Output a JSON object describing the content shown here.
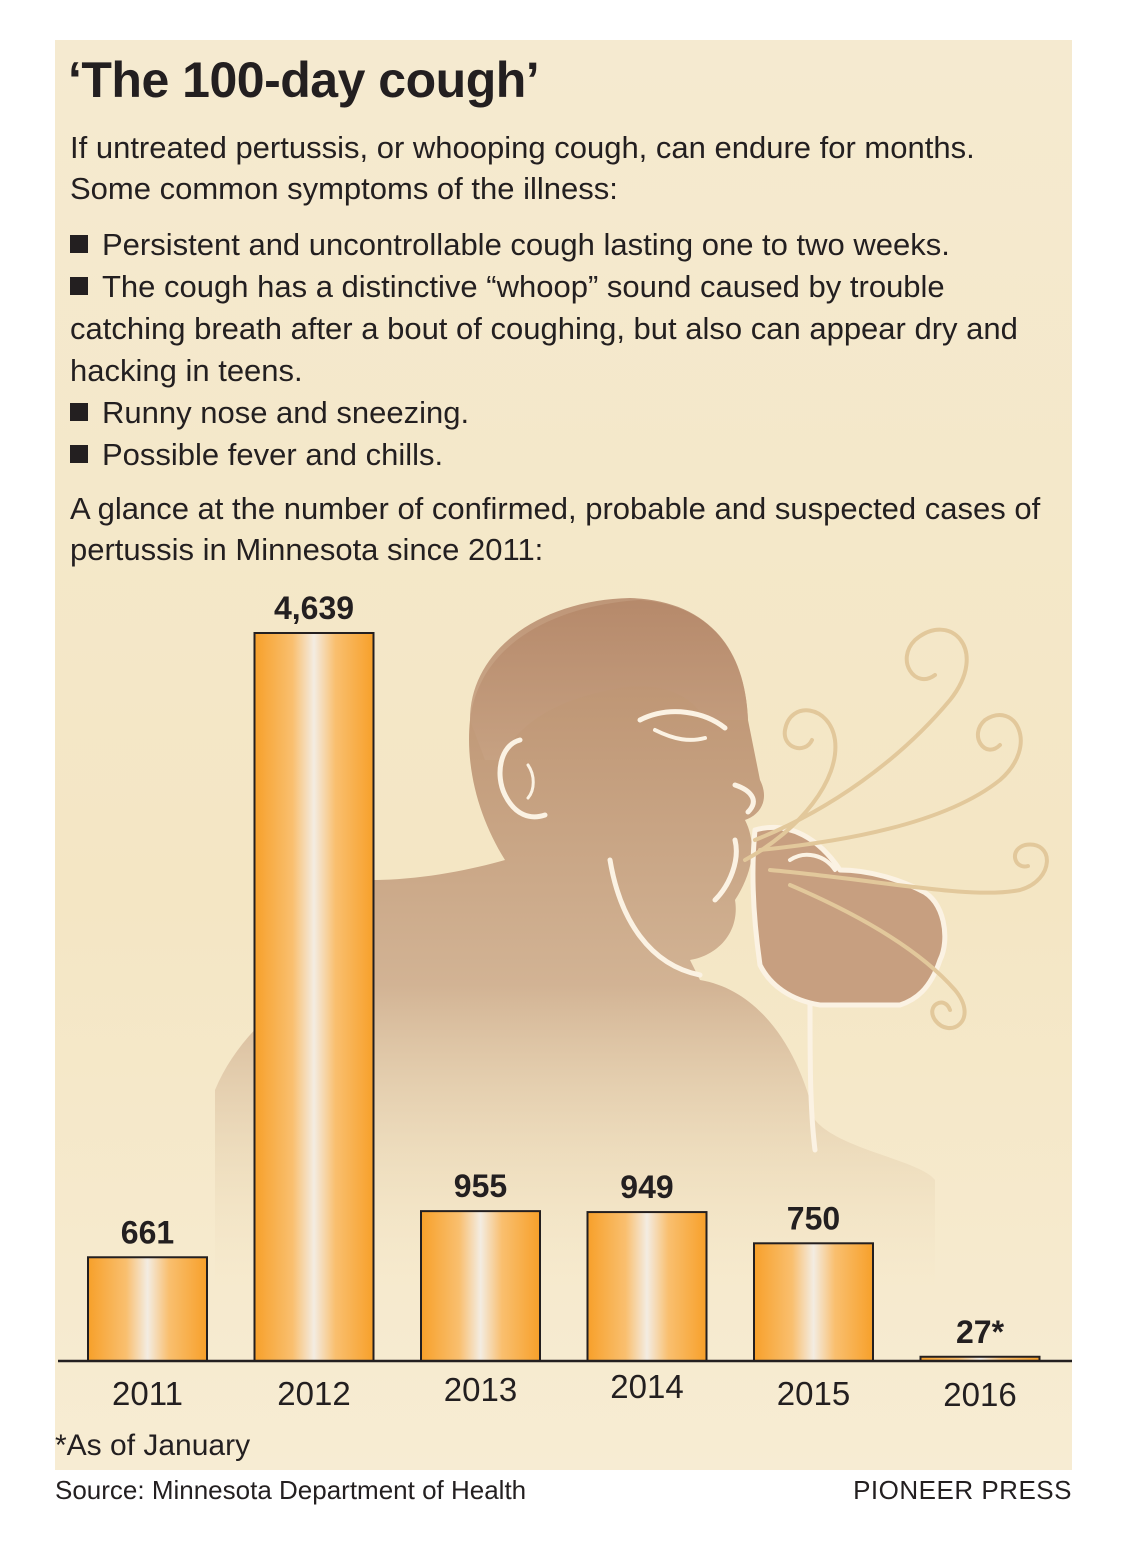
{
  "title": "‘The 100-day cough’",
  "intro": "If untreated pertussis, or whooping cough, can endure for months. Some common symptoms of the illness:",
  "symptoms": [
    "Persistent and uncontrollable cough lasting one to two weeks.",
    "The cough has a distinctive “whoop” sound caused by trouble catching breath after a bout of coughing, but also can appear dry and hacking in teens.",
    "Runny nose and sneezing.",
    "Possible fever and chills."
  ],
  "chart_intro": "A glance at the number of confirmed, probable and suspected cases of pertussis in Minnesota since 2011:",
  "chart_data": {
    "type": "bar",
    "categories": [
      "2011",
      "2012",
      "2013",
      "2014",
      "2015",
      "2016"
    ],
    "values": [
      661,
      4639,
      955,
      949,
      750,
      27
    ],
    "value_labels": [
      "661",
      "4,639",
      "955",
      "949",
      "750",
      "27*"
    ],
    "ylim": [
      0,
      4639
    ],
    "grid": false,
    "bar_color": "#f7a631"
  },
  "footnote": "*As of January",
  "source": "Source: Minnesota Department of Health",
  "credit": "PIONEER PRESS",
  "colors": {
    "background": "#f5ead0",
    "illustration": "#c49a78",
    "bar": "#f7a631",
    "text": "#231f20"
  }
}
